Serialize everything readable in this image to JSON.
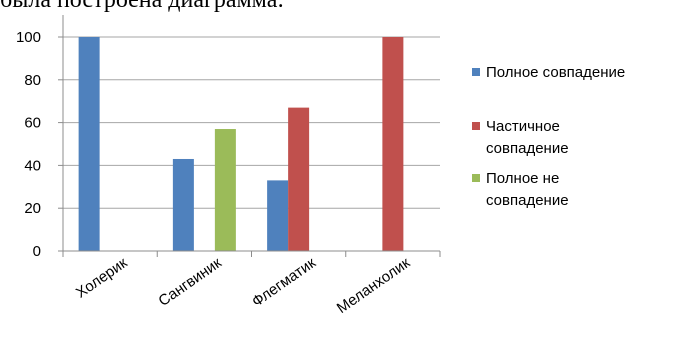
{
  "caption": "была построена диаграмма:",
  "chart_data": {
    "type": "bar",
    "categories": [
      "Холерик",
      "Сангвиник",
      "Флегматик",
      "Меланхолик"
    ],
    "series": [
      {
        "name_lines": [
          "Полное совпадение"
        ],
        "color": "#4f81bd",
        "values": [
          100,
          43,
          33,
          null
        ]
      },
      {
        "name_lines": [
          "Частичное",
          "совпадение"
        ],
        "color": "#c0504d",
        "values": [
          null,
          null,
          67,
          100
        ]
      },
      {
        "name_lines": [
          "Полное не",
          "совпадение"
        ],
        "color": "#9bbb59",
        "values": [
          null,
          57,
          null,
          null
        ]
      }
    ],
    "ylim": [
      0,
      100
    ],
    "yticks": [
      0,
      20,
      40,
      60,
      80,
      100
    ],
    "grid": true,
    "legend": "right"
  }
}
